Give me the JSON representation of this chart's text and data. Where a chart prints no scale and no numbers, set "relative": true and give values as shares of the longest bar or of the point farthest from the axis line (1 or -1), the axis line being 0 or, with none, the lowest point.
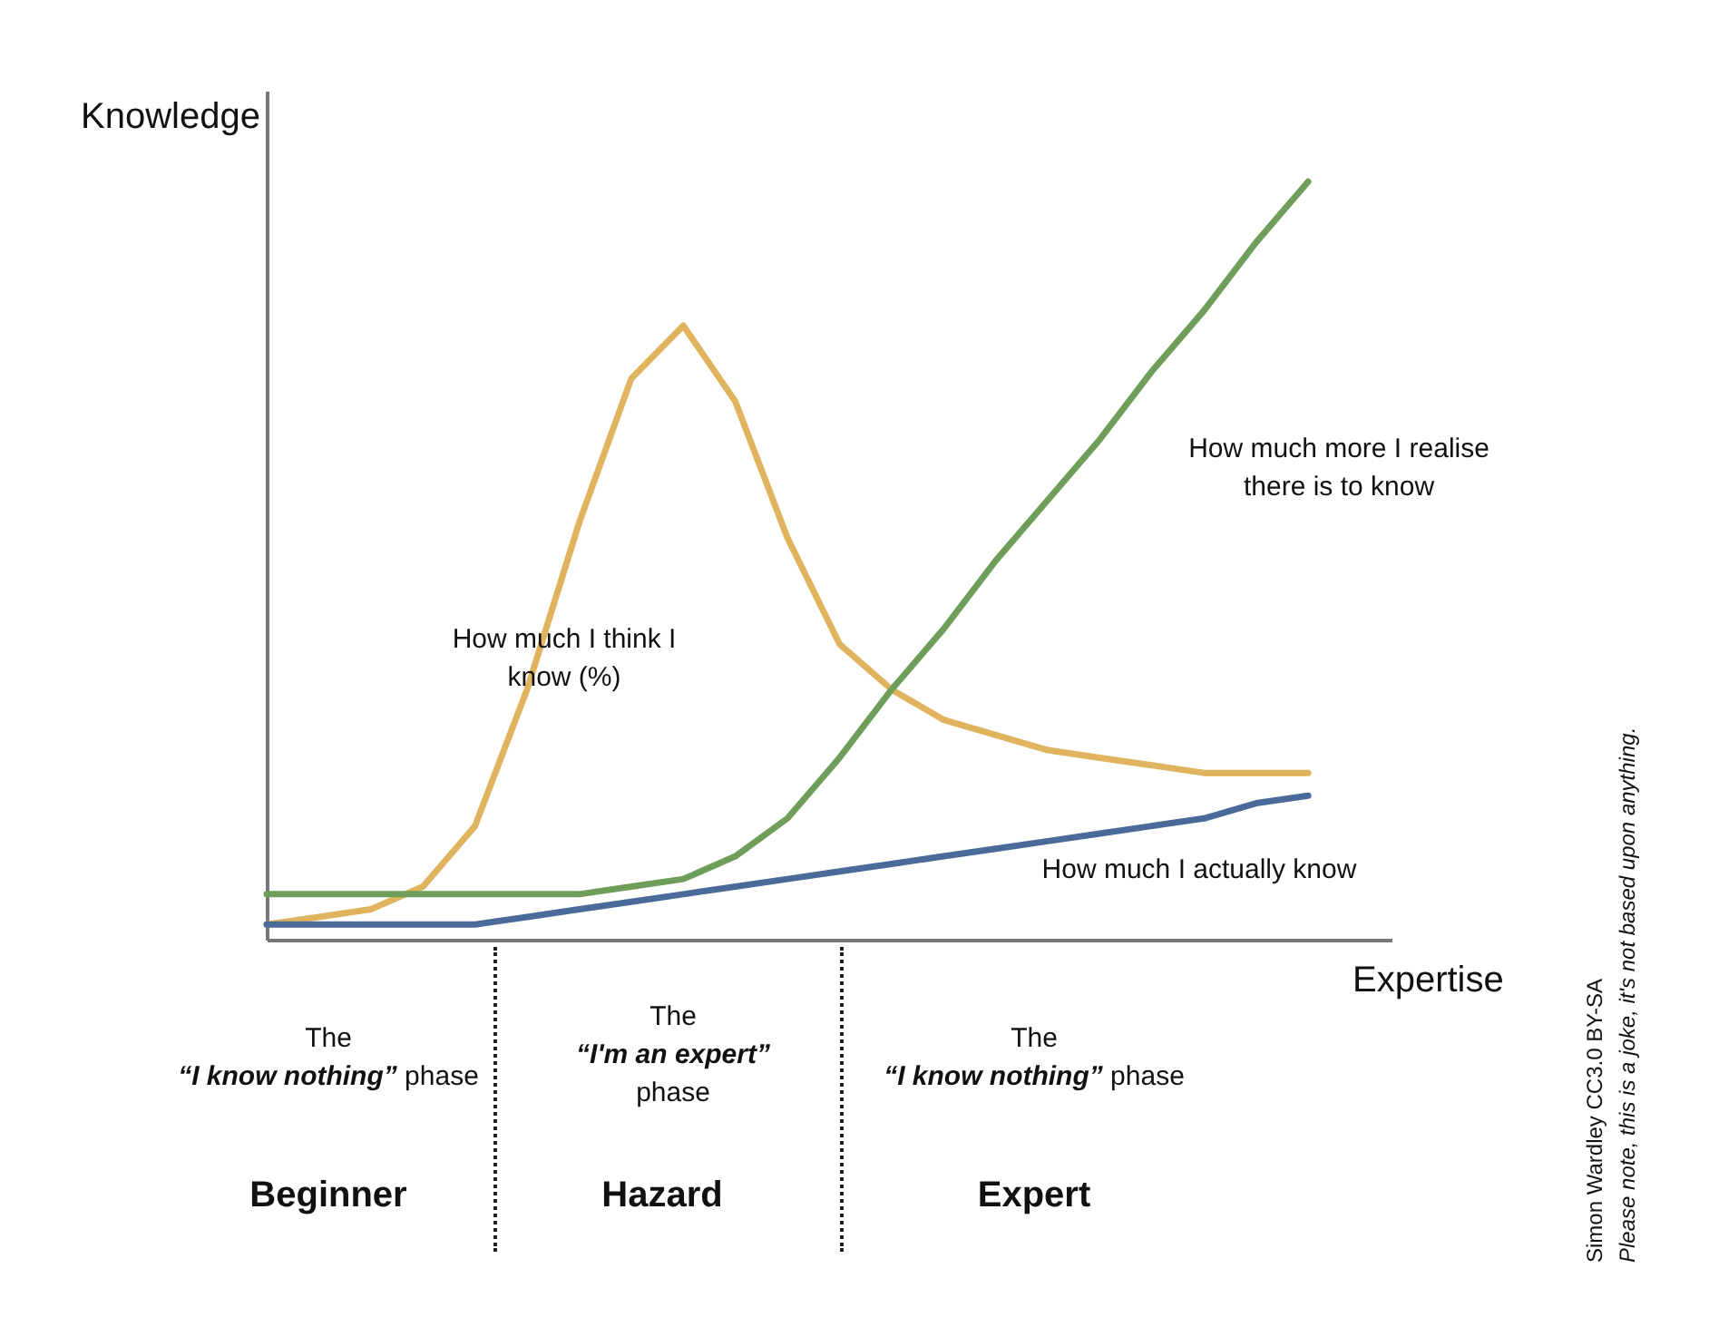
{
  "chart_data": {
    "type": "line",
    "relative": true,
    "xlabel": "Expertise",
    "ylabel": "Knowledge",
    "categories": [
      null,
      null,
      null,
      null,
      null,
      null,
      null,
      null,
      null,
      null,
      null,
      null,
      null,
      null,
      null,
      null,
      null,
      null,
      null,
      null,
      null
    ],
    "series": [
      {
        "name": "How much I think I know (%)",
        "color": "#e0b45e",
        "values": [
          0.02,
          0.03,
          0.04,
          0.07,
          0.15,
          0.33,
          0.55,
          0.74,
          0.81,
          0.71,
          0.53,
          0.39,
          0.33,
          0.29,
          0.27,
          0.25,
          0.24,
          0.23,
          0.22,
          0.22,
          0.22
        ]
      },
      {
        "name": "How much more I realise there is to know",
        "color": "#6e9e5a",
        "values": [
          0.06,
          0.06,
          0.06,
          0.06,
          0.06,
          0.06,
          0.06,
          0.07,
          0.08,
          0.11,
          0.16,
          0.24,
          0.33,
          0.41,
          0.5,
          0.58,
          0.66,
          0.75,
          0.83,
          0.92,
          1.0
        ]
      },
      {
        "name": "How much I actually know",
        "color": "#4a6a9a",
        "values": [
          0.02,
          0.02,
          0.02,
          0.02,
          0.02,
          0.03,
          0.04,
          0.05,
          0.06,
          0.07,
          0.08,
          0.09,
          0.1,
          0.11,
          0.12,
          0.13,
          0.14,
          0.15,
          0.16,
          0.18,
          0.19
        ]
      }
    ],
    "annotations": [
      "The “I know nothing” phase",
      "The “I'm an expert” phase",
      "The “I know nothing” phase",
      "Beginner",
      "Hazard",
      "Expert",
      "Simon Wardley CC3.0 BY-SA",
      "Please note, this is a joke, it's not based upon anything."
    ],
    "grid": false,
    "legend": false,
    "line_style": "solid"
  }
}
